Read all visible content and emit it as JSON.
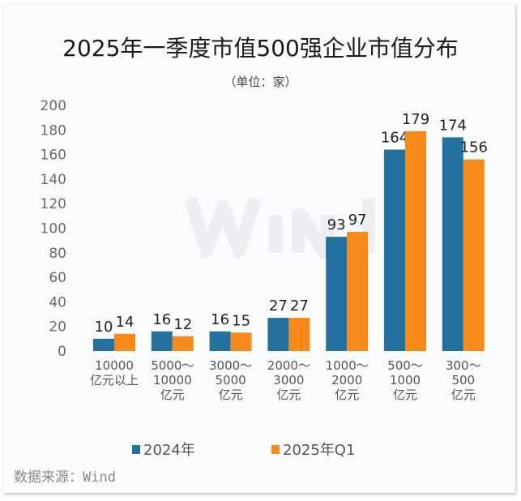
{
  "chart_data": {
    "type": "bar",
    "title": "2025年一季度市值500强企业市值分布",
    "subtitle": "（单位：家）",
    "categories": [
      "10000亿元以上",
      "5000～10000亿元",
      "3000～5000亿元",
      "2000～3000亿元",
      "1000～2000亿元",
      "500～1000亿元",
      "300～500亿元"
    ],
    "series": [
      {
        "name": "2024年",
        "color": "#23719f",
        "values": [
          10,
          16,
          16,
          27,
          93,
          164,
          174
        ]
      },
      {
        "name": "2025年Q1",
        "color": "#f5891a",
        "values": [
          14,
          12,
          15,
          27,
          97,
          179,
          156
        ]
      }
    ],
    "yticks": [
      0,
      20,
      40,
      60,
      80,
      100,
      120,
      140,
      160,
      180,
      200
    ],
    "ylim": [
      0,
      200
    ],
    "grid": false,
    "legend": "bottom",
    "data_labels": true
  },
  "watermark": "Wind",
  "source": "数据来源：Wind"
}
